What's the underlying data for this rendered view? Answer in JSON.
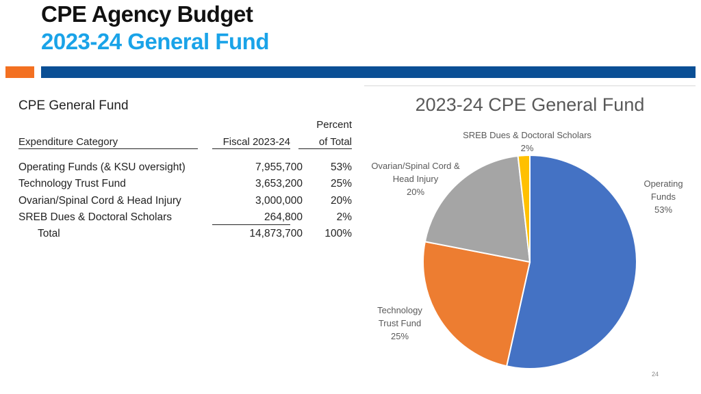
{
  "header": {
    "title_line1": "CPE Agency Budget",
    "title_line2": "2023-24 General Fund"
  },
  "table": {
    "title": "CPE General Fund",
    "col_category": "Expenditure Category",
    "col_fiscal": "Fiscal 2023-24",
    "col_percent_line1": "Percent",
    "col_percent_line2": "of Total",
    "rows": [
      {
        "category": "Operating Funds (& KSU oversight)",
        "amount": "7,955,700",
        "percent": "53%"
      },
      {
        "category": "Technology Trust Fund",
        "amount": "3,653,200",
        "percent": "25%"
      },
      {
        "category": "Ovarian/Spinal Cord & Head Injury",
        "amount": "3,000,000",
        "percent": "20%"
      },
      {
        "category": "SREB Dues & Doctoral Scholars",
        "amount": "264,800",
        "percent": "2%"
      }
    ],
    "total": {
      "category": "Total",
      "amount": "14,873,700",
      "percent": "100%"
    }
  },
  "chart_data": {
    "type": "pie",
    "title": "2023-24 CPE General Fund",
    "slices": [
      {
        "label_lines": [
          "Operating",
          "Funds",
          "53%"
        ],
        "value": 7955700,
        "percent": 53,
        "color": "#4472c4"
      },
      {
        "label_lines": [
          "Technology",
          "Trust Fund",
          "25%"
        ],
        "value": 3653200,
        "percent": 25,
        "color": "#ed7d31"
      },
      {
        "label_lines": [
          "Ovarian/Spinal Cord &",
          "Head Injury",
          "20%"
        ],
        "value": 3000000,
        "percent": 20,
        "color": "#a5a5a5"
      },
      {
        "label_lines": [
          "SREB Dues & Doctoral Scholars",
          "2%"
        ],
        "value": 264800,
        "percent": 2,
        "color": "#ffc000"
      }
    ]
  },
  "page_number": "24"
}
